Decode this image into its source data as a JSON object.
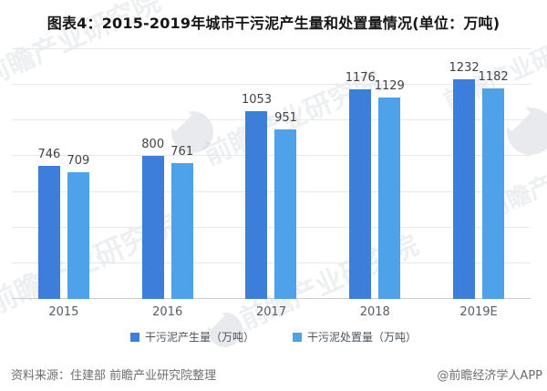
{
  "title": "图表4：2015-2019年城市干污泥产生量和处置量情况(单位：万吨)",
  "chart_data": {
    "type": "bar",
    "title": "图表4：2015-2019年城市干污泥产生量和处置量情况(单位：万吨)",
    "unit": "万吨",
    "categories": [
      "2015",
      "2016",
      "2017",
      "2018",
      "2019E"
    ],
    "series": [
      {
        "name": "干污泥产生量（万吨）",
        "color": "#3D7EDB",
        "values": [
          746,
          800,
          1053,
          1176,
          1232
        ]
      },
      {
        "name": "干污泥处置量（万吨）",
        "color": "#4EA2E9",
        "values": [
          709,
          761,
          951,
          1129,
          1182
        ]
      }
    ],
    "ylim": [
      0,
      1400
    ],
    "grid_interval": 200,
    "grid": true,
    "y_axis_labels_visible": false,
    "legend_position": "bottom"
  },
  "footer": {
    "source": "资料来源：住建部 前瞻产业研究院整理",
    "credit": "@前瞻经济学人APP"
  },
  "watermark": {
    "text": "前瞻产业研究院"
  }
}
